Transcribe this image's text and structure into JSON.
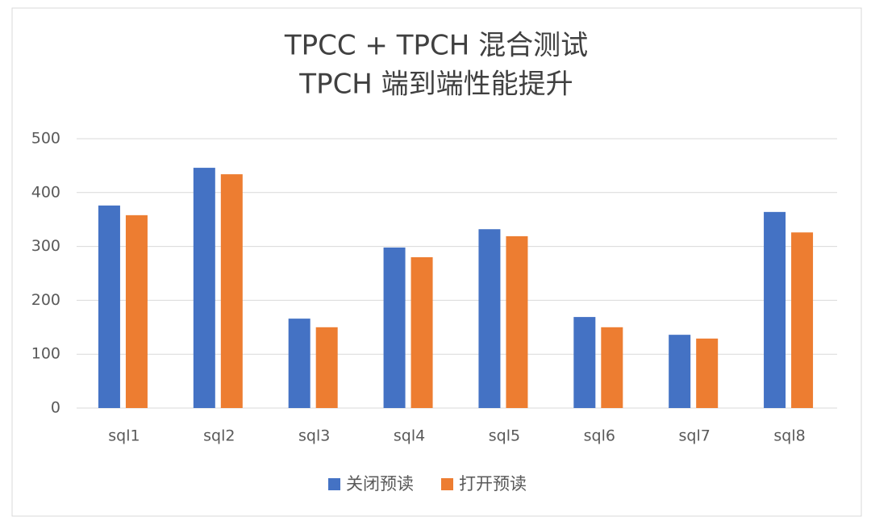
{
  "chart_data": {
    "type": "bar",
    "title": [
      "TPCC + TPCH 混合测试",
      "TPCH 端到端性能提升"
    ],
    "categories": [
      "sql1",
      "sql2",
      "sql3",
      "sql4",
      "sql5",
      "sql6",
      "sql7",
      "sql8"
    ],
    "series": [
      {
        "name": "关闭预读",
        "color": "#4472c4",
        "values": [
          376,
          446,
          166,
          298,
          332,
          169,
          136,
          364
        ]
      },
      {
        "name": "打开预读",
        "color": "#ed7d31",
        "values": [
          358,
          434,
          150,
          280,
          319,
          150,
          129,
          326
        ]
      }
    ],
    "ylim": [
      0,
      500
    ],
    "yticks": [
      0,
      100,
      200,
      300,
      400,
      500
    ],
    "grid": true,
    "legend": "bottom"
  }
}
